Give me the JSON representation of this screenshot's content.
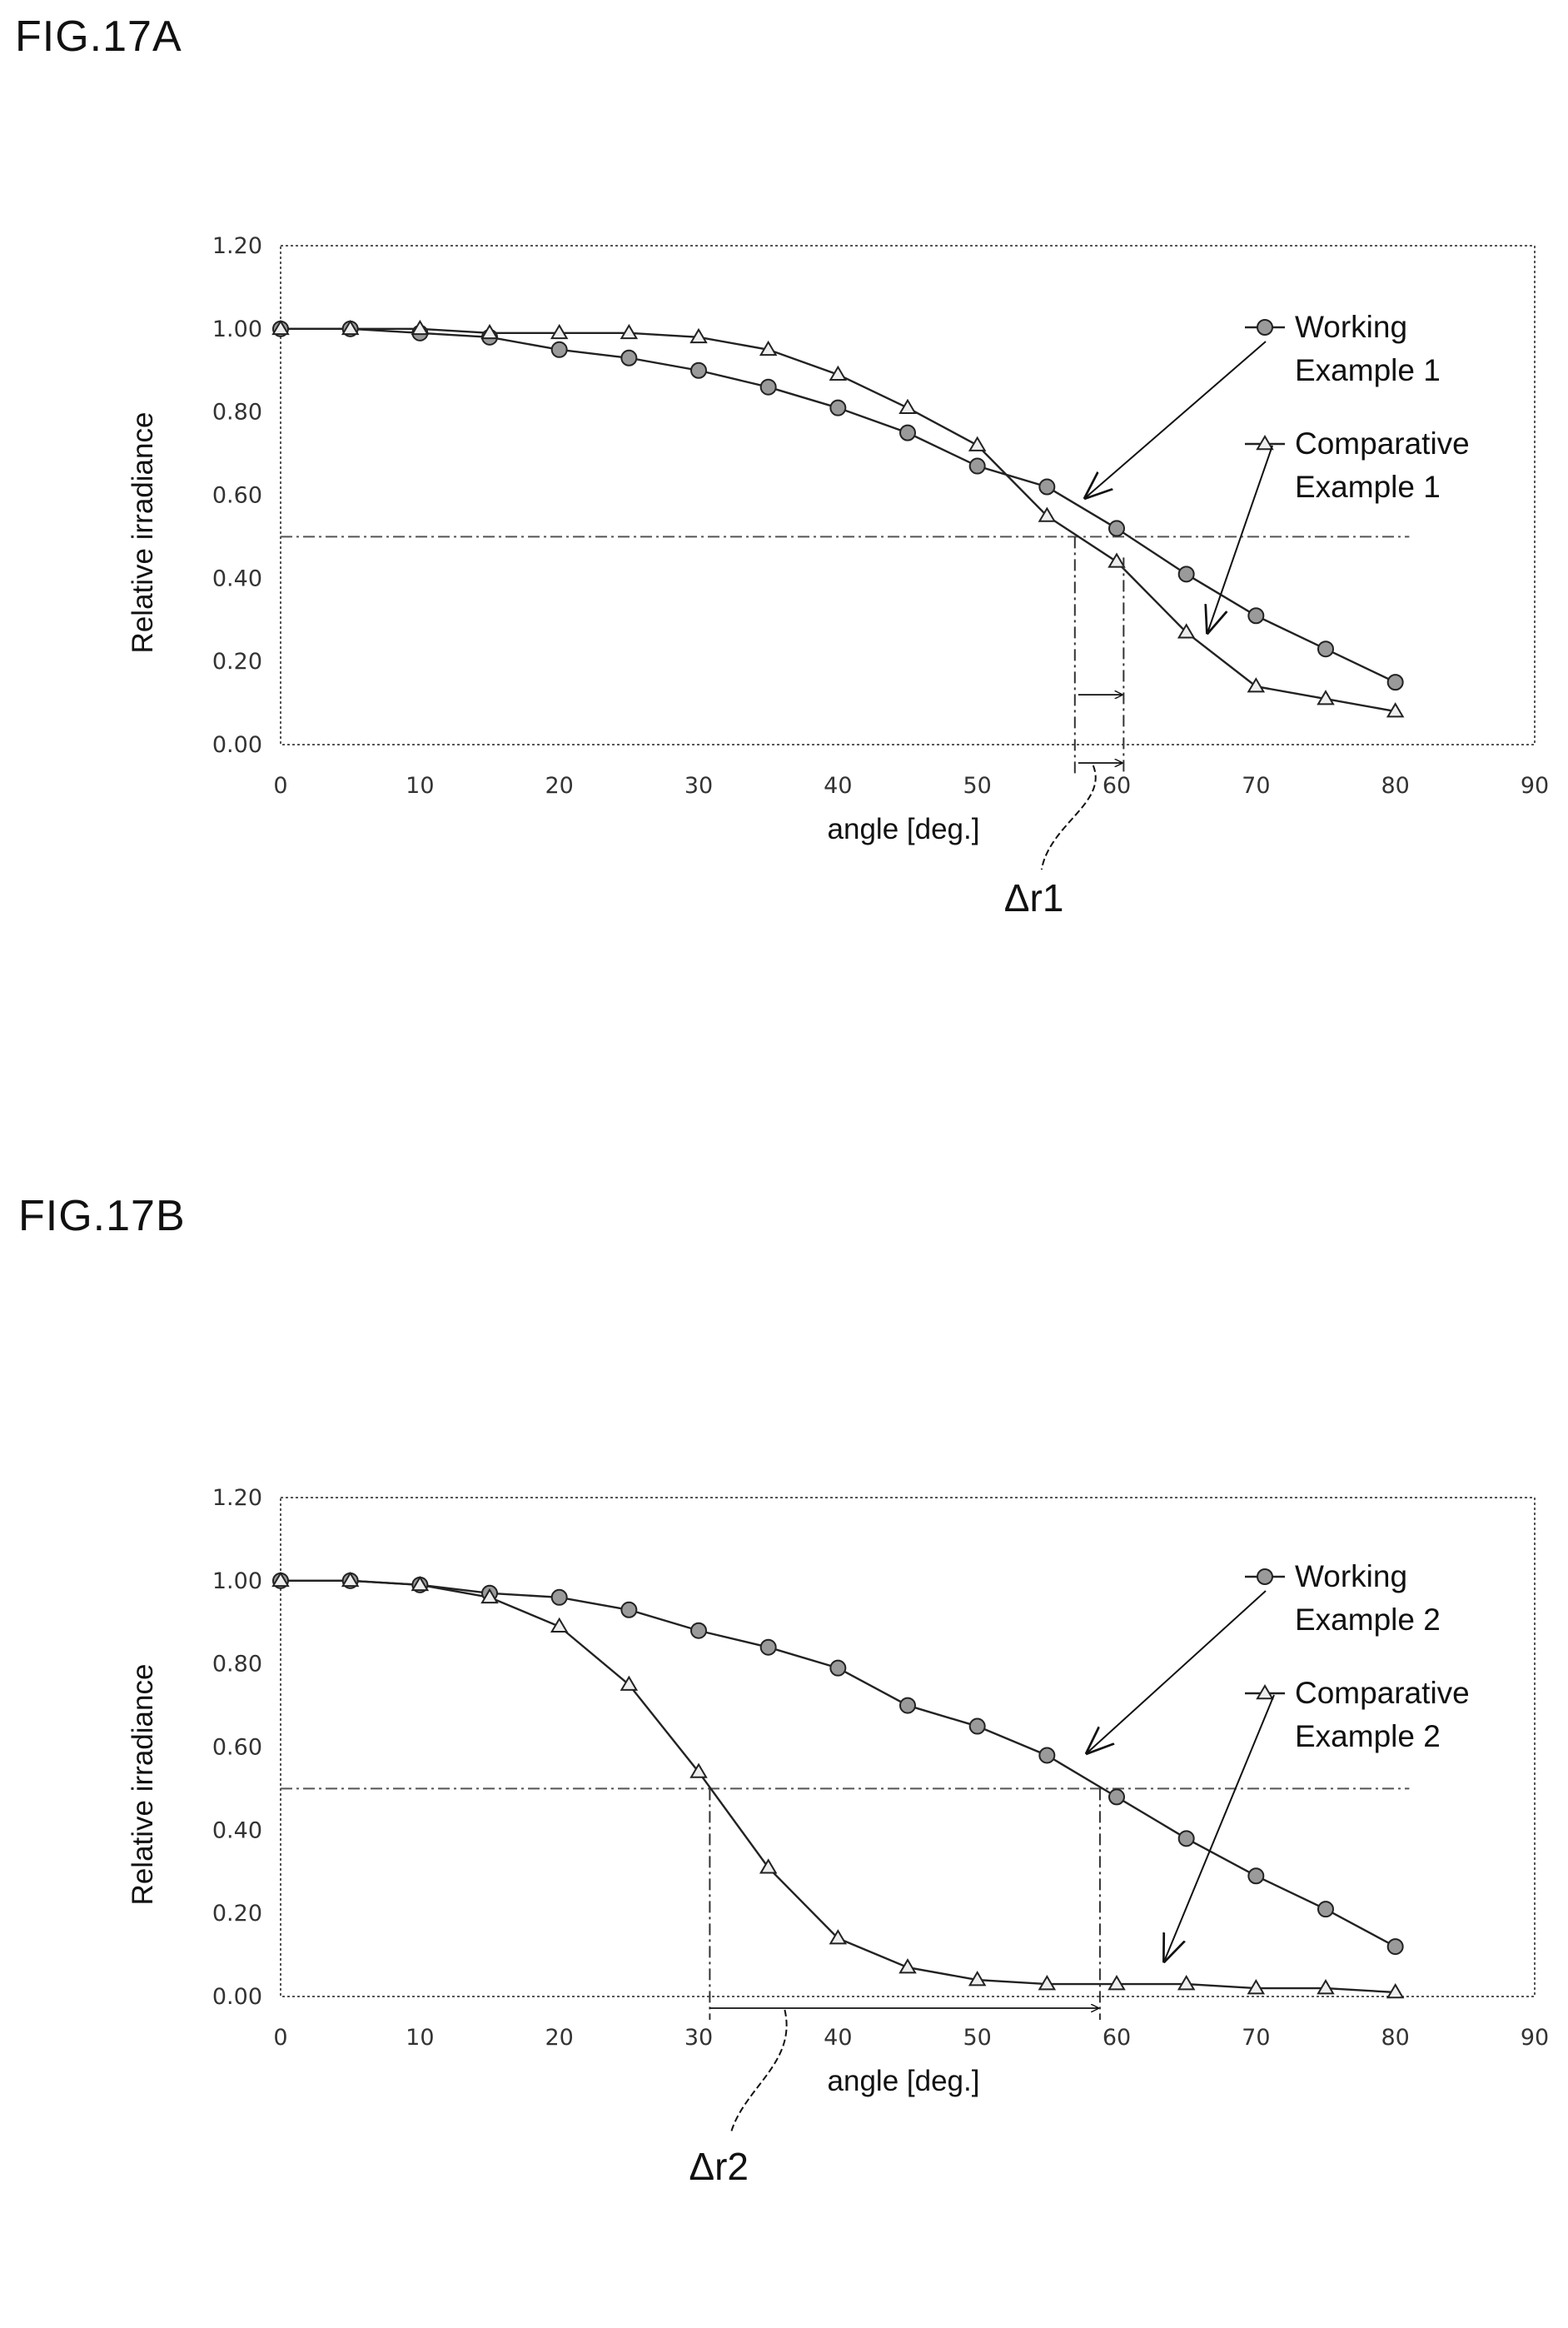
{
  "figures": [
    {
      "title": "FIG.17A",
      "chart_data": {
        "type": "line",
        "xlabel": "angle  [deg.]",
        "ylabel": "Relative irradiance",
        "xlim": [
          0,
          90
        ],
        "ylim": [
          0,
          1.2
        ],
        "x_ticks": [
          "0",
          "10",
          "20",
          "30",
          "40",
          "50",
          "60",
          "70",
          "80",
          "90"
        ],
        "y_ticks": [
          "0.00",
          "0.20",
          "0.40",
          "0.60",
          "0.80",
          "1.00",
          "1.20"
        ],
        "grid": false,
        "reference_line": 0.5,
        "x": [
          0,
          5,
          10,
          15,
          20,
          25,
          30,
          35,
          40,
          45,
          50,
          55,
          60,
          65,
          70,
          75,
          80
        ],
        "series": [
          {
            "label_line1": "Working",
            "label_line2": "Example 1",
            "marker": "circle",
            "values": [
              1.0,
              1.0,
              0.99,
              0.98,
              0.95,
              0.93,
              0.9,
              0.86,
              0.81,
              0.75,
              0.67,
              0.62,
              0.52,
              0.41,
              0.31,
              0.23,
              0.15
            ]
          },
          {
            "label_line1": "Comparative",
            "label_line2": "Example 1",
            "marker": "triangle",
            "values": [
              1.0,
              1.0,
              1.0,
              0.99,
              0.99,
              0.99,
              0.98,
              0.95,
              0.89,
              0.81,
              0.72,
              0.55,
              0.44,
              0.27,
              0.14,
              0.11,
              0.08
            ]
          }
        ],
        "delta_label": "Δr1",
        "delta_range": [
          57,
          60.5
        ]
      }
    },
    {
      "title": "FIG.17B",
      "chart_data": {
        "type": "line",
        "xlabel": "angle  [deg.]",
        "ylabel": "Relative irradiance",
        "xlim": [
          0,
          90
        ],
        "ylim": [
          0,
          1.2
        ],
        "x_ticks": [
          "0",
          "10",
          "20",
          "30",
          "40",
          "50",
          "60",
          "70",
          "80",
          "90"
        ],
        "y_ticks": [
          "0.00",
          "0.20",
          "0.40",
          "0.60",
          "0.80",
          "1.00",
          "1.20"
        ],
        "grid": false,
        "reference_line": 0.5,
        "x": [
          0,
          5,
          10,
          15,
          20,
          25,
          30,
          35,
          40,
          45,
          50,
          55,
          60,
          65,
          70,
          75,
          80
        ],
        "series": [
          {
            "label_line1": "Working",
            "label_line2": "Example 2",
            "marker": "circle",
            "values": [
              1.0,
              1.0,
              0.99,
              0.97,
              0.96,
              0.93,
              0.88,
              0.84,
              0.79,
              0.7,
              0.65,
              0.58,
              0.48,
              0.38,
              0.29,
              0.21,
              0.12
            ]
          },
          {
            "label_line1": "Comparative",
            "label_line2": "Example 2",
            "marker": "triangle",
            "values": [
              1.0,
              1.0,
              0.99,
              0.96,
              0.89,
              0.75,
              0.54,
              0.31,
              0.14,
              0.07,
              0.04,
              0.03,
              0.03,
              0.03,
              0.02,
              0.02,
              0.01
            ]
          }
        ],
        "delta_label": "Δr2",
        "delta_range": [
          30.8,
          58.8
        ]
      }
    }
  ]
}
